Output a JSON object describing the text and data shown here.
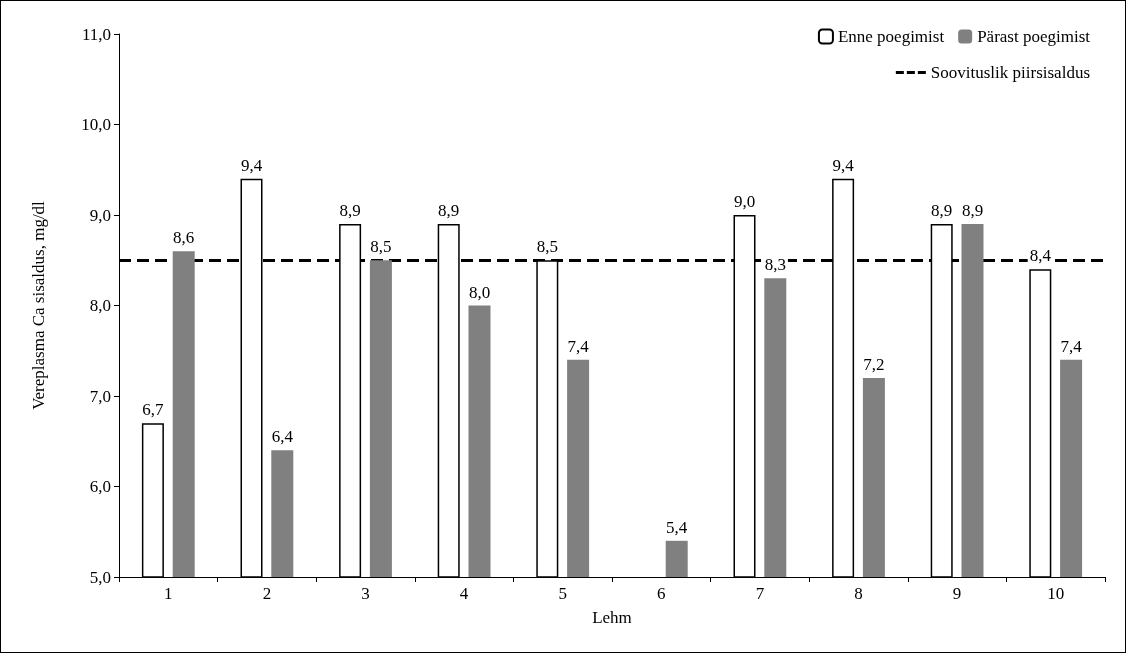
{
  "chart_data": {
    "type": "bar",
    "xlabel": "Lehm",
    "ylabel": "Vereplasma Ca sisaldus, mg/dl",
    "categories": [
      "1",
      "2",
      "3",
      "4",
      "5",
      "6",
      "7",
      "8",
      "9",
      "10"
    ],
    "series": [
      {
        "name": "Enne poegimist",
        "color": "#ffffff",
        "values": [
          6.7,
          9.4,
          8.9,
          8.9,
          8.5,
          null,
          9.0,
          9.4,
          8.9,
          8.4
        ],
        "value_labels": [
          "6,7",
          "9,4",
          "8,9",
          "8,9",
          "8,5",
          null,
          "9,0",
          "9,4",
          "8,9",
          "8,4"
        ]
      },
      {
        "name": "Pärast poegimist",
        "color": "#808080",
        "values": [
          8.6,
          6.4,
          8.5,
          8.0,
          7.4,
          5.4,
          8.3,
          7.2,
          8.9,
          7.4
        ],
        "value_labels": [
          "8,6",
          "6,4",
          "8,5",
          "8,0",
          "7,4",
          "5,4",
          "8,3",
          "7,2",
          "8,9",
          "7,4"
        ]
      }
    ],
    "ylim": [
      5,
      11
    ],
    "yticks": [
      {
        "value": 5,
        "label": "5,0"
      },
      {
        "value": 6,
        "label": "6,0"
      },
      {
        "value": 7,
        "label": "7,0"
      },
      {
        "value": 8,
        "label": "8,0"
      },
      {
        "value": 9,
        "label": "9,0"
      },
      {
        "value": 10,
        "label": "10,0"
      },
      {
        "value": 11,
        "label": "11,0"
      }
    ],
    "ref_lines": [
      {
        "axis": "y",
        "value": 8.5,
        "label": "Soovituslik piirsisaldus",
        "color": "#000000",
        "line_style": "dashed"
      }
    ],
    "grid": false,
    "legend": "top right"
  }
}
